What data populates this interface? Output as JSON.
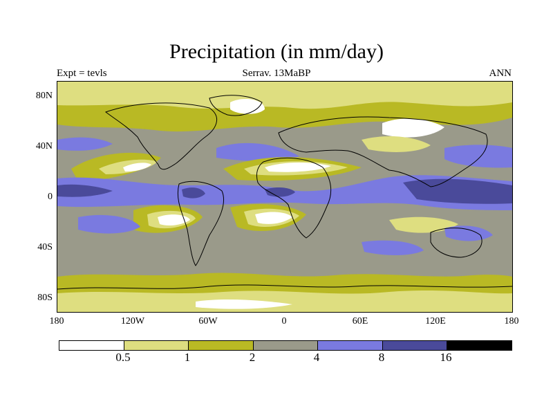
{
  "title": "Precipitation (in mm/day)",
  "subtitle_left": "Expt = tevls",
  "subtitle_center": "Serrav.  13MaBP",
  "subtitle_right": "ANN",
  "lat_ticks": [
    "80N",
    "40N",
    "0",
    "40S",
    "80S"
  ],
  "lon_ticks": [
    "180",
    "120W",
    "60W",
    "0",
    "60E",
    "120E",
    "180"
  ],
  "colorbar": {
    "labels": [
      "0.5",
      "1",
      "2",
      "4",
      "8",
      "16"
    ],
    "colors": [
      "#ffffff",
      "#dede80",
      "#b9b924",
      "#9a9a8a",
      "#7a7ae0",
      "#4a4a9a",
      "#000000"
    ]
  },
  "palette": {
    "white": "#ffffff",
    "pale": "#dede80",
    "olive": "#b9b924",
    "gray": "#9a9a8a",
    "blue": "#7a7ae0",
    "navy": "#4a4a9a"
  }
}
